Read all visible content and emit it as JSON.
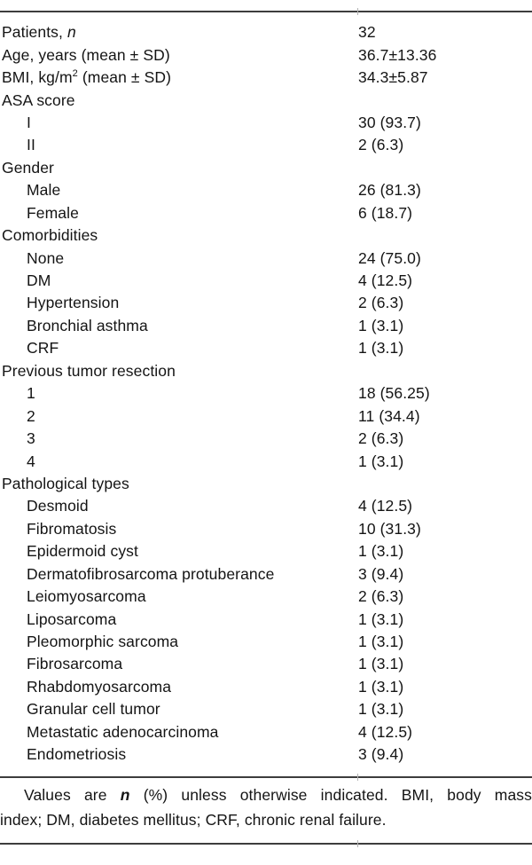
{
  "page": {
    "background_color": "#ffffff",
    "text_color": "#141414",
    "rule_color": "#3d3d3d"
  },
  "table": {
    "rows": [
      {
        "label": "Patients, ",
        "label_italic": "n",
        "value": "32",
        "indent": 0
      },
      {
        "label": "Age, years (mean ± SD)",
        "value": "36.7±13.36",
        "indent": 0
      },
      {
        "label": "BMI, kg/m",
        "label_sup": "2",
        "label_after": " (mean ± SD)",
        "value": "34.3±5.87",
        "indent": 0
      },
      {
        "label": "ASA score",
        "value": "",
        "indent": 0
      },
      {
        "label": "I",
        "value": "30 (93.7)",
        "indent": 1
      },
      {
        "label": "II",
        "value": "2 (6.3)",
        "indent": 1
      },
      {
        "label": "Gender",
        "value": "",
        "indent": 0
      },
      {
        "label": "Male",
        "value": "26 (81.3)",
        "indent": 1
      },
      {
        "label": "Female",
        "value": "6 (18.7)",
        "indent": 1
      },
      {
        "label": "Comorbidities",
        "value": "",
        "indent": 0
      },
      {
        "label": "None",
        "value": "24 (75.0)",
        "indent": 1
      },
      {
        "label": "DM",
        "value": "4 (12.5)",
        "indent": 1
      },
      {
        "label": "Hypertension",
        "value": "2 (6.3)",
        "indent": 1
      },
      {
        "label": "Bronchial asthma",
        "value": "1 (3.1)",
        "indent": 1
      },
      {
        "label": "CRF",
        "value": "1 (3.1)",
        "indent": 1
      },
      {
        "label": "Previous tumor resection",
        "value": "",
        "indent": 0
      },
      {
        "label": "1",
        "value": "18 (56.25)",
        "indent": 1
      },
      {
        "label": "2",
        "value": "11 (34.4)",
        "indent": 1
      },
      {
        "label": "3",
        "value": "2 (6.3)",
        "indent": 1
      },
      {
        "label": "4",
        "value": "1 (3.1)",
        "indent": 1
      },
      {
        "label": "Pathological types",
        "value": "",
        "indent": 0
      },
      {
        "label": "Desmoid",
        "value": "4 (12.5)",
        "indent": 1
      },
      {
        "label": "Fibromatosis",
        "value": "10 (31.3)",
        "indent": 1
      },
      {
        "label": "Epidermoid cyst",
        "value": "1 (3.1)",
        "indent": 1
      },
      {
        "label": "Dermatofibrosarcoma protuberance",
        "value": "3 (9.4)",
        "indent": 1
      },
      {
        "label": "Leiomyosarcoma",
        "value": "2 (6.3)",
        "indent": 1
      },
      {
        "label": "Liposarcoma",
        "value": "1 (3.1)",
        "indent": 1
      },
      {
        "label": "Pleomorphic sarcoma",
        "value": "1 (3.1)",
        "indent": 1
      },
      {
        "label": "Fibrosarcoma",
        "value": "1 (3.1)",
        "indent": 1
      },
      {
        "label": "Rhabdomyosarcoma",
        "value": "1 (3.1)",
        "indent": 1
      },
      {
        "label": "Granular cell tumor",
        "value": "1 (3.1)",
        "indent": 1
      },
      {
        "label": "Metastatic adenocarcinoma",
        "value": "4 (12.5)",
        "indent": 1
      },
      {
        "label": "Endometriosis",
        "value": "3 (9.4)",
        "indent": 1
      }
    ]
  },
  "footnote": {
    "line1_pre": "Values are ",
    "line1_emph": "n",
    "line1_post": " (%) unless otherwise indicated. BMI, body mass",
    "line2": "index; DM, diabetes mellitus; CRF, chronic renal failure."
  }
}
